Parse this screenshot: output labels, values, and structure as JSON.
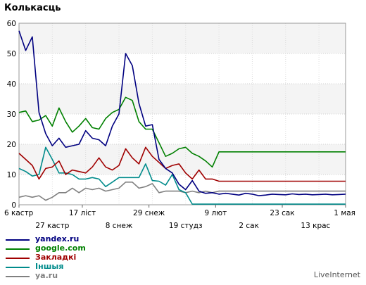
{
  "chart_data": {
    "type": "line",
    "title": "Колькасць",
    "ylim": [
      0,
      60
    ],
    "yticks": [
      "0",
      "10",
      "20",
      "30",
      "40",
      "50",
      "60"
    ],
    "x": [
      0,
      1,
      2,
      3,
      4,
      5,
      6,
      7,
      8,
      9,
      10,
      11,
      12,
      13,
      14,
      15,
      16,
      17,
      18,
      19,
      20,
      21,
      22,
      23,
      24,
      25,
      26,
      27,
      28,
      29,
      30,
      31,
      32,
      33,
      34,
      35,
      36,
      37,
      38,
      39,
      40,
      41,
      42,
      43,
      44,
      45,
      46,
      47,
      48,
      49
    ],
    "xtick_labels_row1": [
      {
        "index": 0,
        "label": "6 кастр"
      },
      {
        "index": 9.5,
        "label": "17 ліст"
      },
      {
        "index": 19.5,
        "label": "29 снеж"
      },
      {
        "index": 29.5,
        "label": "9 лют"
      },
      {
        "index": 39.5,
        "label": "23 сак"
      },
      {
        "index": 49,
        "label": "1 мая"
      }
    ],
    "xtick_labels_row2": [
      {
        "index": 5,
        "label": "27 кастр"
      },
      {
        "index": 15,
        "label": "8 снеж"
      },
      {
        "index": 25,
        "label": "19 студз"
      },
      {
        "index": 34.5,
        "label": "2 сак"
      },
      {
        "index": 44.5,
        "label": "13 крас"
      }
    ],
    "grid": true,
    "series": [
      {
        "name": "yandex.ru",
        "color": "#000080",
        "values": [
          57.5,
          51,
          55.5,
          30.5,
          23.5,
          19.5,
          22,
          19,
          19.5,
          20,
          24.5,
          22,
          21.5,
          19.5,
          26,
          30,
          50,
          46,
          33.5,
          26,
          26.5,
          15,
          12,
          10.5,
          6.8,
          5,
          8,
          4.5,
          3.8,
          4,
          3.5,
          3.8,
          3.5,
          3.2,
          3.8,
          3.5,
          3,
          3.2,
          3.5,
          3.4,
          3.3,
          3.6,
          3.4,
          3.5,
          3.3,
          3.4,
          3.5,
          3.3,
          3.4,
          3.5
        ]
      },
      {
        "name": "google.com",
        "color": "#008000",
        "values": [
          30.5,
          31,
          27.5,
          28,
          29.5,
          26,
          32,
          27.5,
          24,
          26,
          28.5,
          25.5,
          25,
          28.5,
          30.5,
          31.5,
          35.5,
          34.5,
          27.5,
          25,
          25,
          20.5,
          16,
          17,
          18.5,
          19,
          17,
          16,
          14.5,
          12.5,
          17.5,
          17.5,
          17.5,
          17.5,
          17.5,
          17.5,
          17.5,
          17.5,
          17.5,
          17.5,
          17.5,
          17.5,
          17.5,
          17.5,
          17.5,
          17.5,
          17.5,
          17.5,
          17.5,
          17.5
        ]
      },
      {
        "name": "Закладкі",
        "color": "#a00000",
        "values": [
          17,
          15,
          13,
          8.5,
          12,
          12.5,
          14.5,
          10,
          11.5,
          11,
          10.5,
          12.5,
          15.5,
          12.5,
          11.5,
          13,
          18.5,
          15.5,
          13.5,
          19,
          16,
          14,
          12,
          13,
          13.5,
          10.5,
          8.5,
          11.5,
          8.5,
          8.5,
          7.8,
          7.8,
          7.8,
          7.8,
          7.8,
          7.8,
          7.8,
          7.8,
          7.8,
          7.8,
          7.8,
          7.8,
          7.8,
          7.8,
          7.8,
          7.8,
          7.8,
          7.8,
          7.8,
          7.8
        ]
      },
      {
        "name": "Іншыя",
        "color": "#008b8b",
        "values": [
          12,
          11,
          9.5,
          10,
          19,
          15,
          10.5,
          10.5,
          10,
          8.5,
          8.5,
          9,
          8.5,
          6,
          7.5,
          9,
          9,
          9,
          9,
          13.5,
          8,
          7.8,
          6.5,
          10,
          5,
          4,
          0.2,
          0.2,
          0.2,
          0.2,
          0.2,
          0.2,
          0.2,
          0.2,
          0.2,
          0.2,
          0.2,
          0.2,
          0.2,
          0.2,
          0.2,
          0.2,
          0.2,
          0.2,
          0.2,
          0.2,
          0.2,
          0.2,
          0.2,
          0.2
        ]
      },
      {
        "name": "ya.ru",
        "color": "#808080",
        "values": [
          2.5,
          3,
          2.5,
          3,
          1.5,
          2.5,
          4,
          4,
          5.5,
          4,
          5.5,
          5,
          5.5,
          4.5,
          5,
          5.5,
          7.5,
          7.5,
          5.5,
          6,
          7,
          4,
          4.5,
          4.5,
          4.5,
          4,
          4.5,
          4,
          4.5,
          4,
          4.5,
          4.5,
          4.5,
          4.5,
          4.5,
          4.5,
          4.5,
          4.5,
          4.5,
          4.5,
          4.5,
          4.5,
          4.5,
          4.5,
          4.5,
          4.5,
          4.5,
          4.5,
          4.5,
          4.5
        ]
      }
    ]
  },
  "watermark": "LiveInternet"
}
